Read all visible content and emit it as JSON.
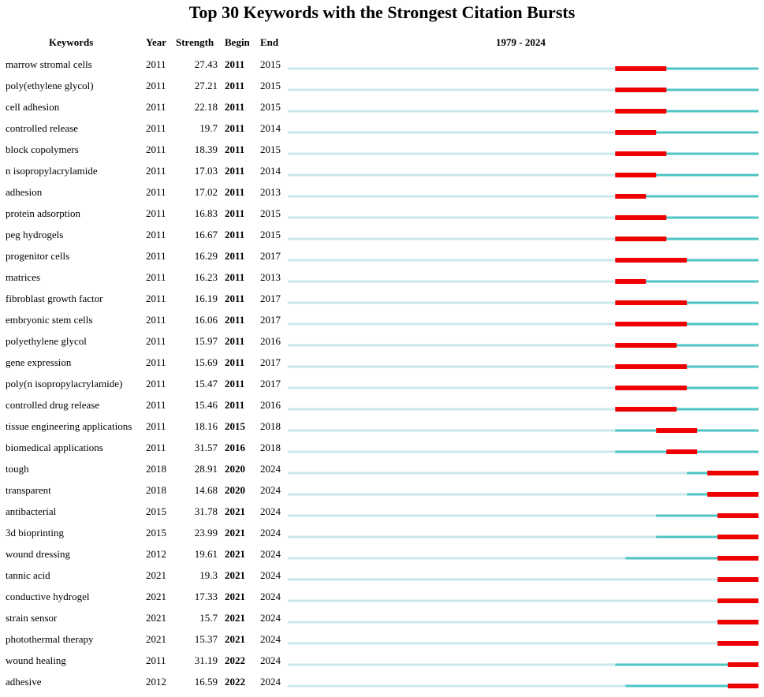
{
  "title": "Top 30 Keywords with the Strongest Citation Bursts",
  "headers": {
    "keywords": "Keywords",
    "year": "Year",
    "strength": "Strength",
    "begin": "Begin",
    "end": "End",
    "range": "1979 - 2024"
  },
  "colors": {
    "inactive": "#c8e8ec",
    "active": "#4ec3c3",
    "burst": "#ee0000"
  },
  "chart_data": {
    "type": "table",
    "title": "Top 30 Keywords with the Strongest Citation Bursts",
    "timeline_start": 1979,
    "timeline_end": 2024,
    "columns": [
      "Keywords",
      "Year",
      "Strength",
      "Begin",
      "End"
    ],
    "rows": [
      {
        "keyword": "marrow stromal cells",
        "year": 2011,
        "strength": "27.43",
        "begin": 2011,
        "end": 2015
      },
      {
        "keyword": "poly(ethylene glycol)",
        "year": 2011,
        "strength": "27.21",
        "begin": 2011,
        "end": 2015
      },
      {
        "keyword": "cell adhesion",
        "year": 2011,
        "strength": "22.18",
        "begin": 2011,
        "end": 2015
      },
      {
        "keyword": "controlled release",
        "year": 2011,
        "strength": "19.7",
        "begin": 2011,
        "end": 2014
      },
      {
        "keyword": "block copolymers",
        "year": 2011,
        "strength": "18.39",
        "begin": 2011,
        "end": 2015
      },
      {
        "keyword": "n isopropylacrylamide",
        "year": 2011,
        "strength": "17.03",
        "begin": 2011,
        "end": 2014
      },
      {
        "keyword": "adhesion",
        "year": 2011,
        "strength": "17.02",
        "begin": 2011,
        "end": 2013
      },
      {
        "keyword": "protein adsorption",
        "year": 2011,
        "strength": "16.83",
        "begin": 2011,
        "end": 2015
      },
      {
        "keyword": "peg hydrogels",
        "year": 2011,
        "strength": "16.67",
        "begin": 2011,
        "end": 2015
      },
      {
        "keyword": "progenitor cells",
        "year": 2011,
        "strength": "16.29",
        "begin": 2011,
        "end": 2017
      },
      {
        "keyword": "matrices",
        "year": 2011,
        "strength": "16.23",
        "begin": 2011,
        "end": 2013
      },
      {
        "keyword": "fibroblast growth factor",
        "year": 2011,
        "strength": "16.19",
        "begin": 2011,
        "end": 2017
      },
      {
        "keyword": "embryonic stem cells",
        "year": 2011,
        "strength": "16.06",
        "begin": 2011,
        "end": 2017
      },
      {
        "keyword": "polyethylene glycol",
        "year": 2011,
        "strength": "15.97",
        "begin": 2011,
        "end": 2016
      },
      {
        "keyword": "gene expression",
        "year": 2011,
        "strength": "15.69",
        "begin": 2011,
        "end": 2017
      },
      {
        "keyword": "poly(n isopropylacrylamide)",
        "year": 2011,
        "strength": "15.47",
        "begin": 2011,
        "end": 2017
      },
      {
        "keyword": "controlled drug release",
        "year": 2011,
        "strength": "15.46",
        "begin": 2011,
        "end": 2016
      },
      {
        "keyword": "tissue engineering applications",
        "year": 2011,
        "strength": "18.16",
        "begin": 2015,
        "end": 2018
      },
      {
        "keyword": "biomedical applications",
        "year": 2011,
        "strength": "31.57",
        "begin": 2016,
        "end": 2018
      },
      {
        "keyword": "tough",
        "year": 2018,
        "strength": "28.91",
        "begin": 2020,
        "end": 2024
      },
      {
        "keyword": "transparent",
        "year": 2018,
        "strength": "14.68",
        "begin": 2020,
        "end": 2024
      },
      {
        "keyword": "antibacterial",
        "year": 2015,
        "strength": "31.78",
        "begin": 2021,
        "end": 2024
      },
      {
        "keyword": "3d bioprinting",
        "year": 2015,
        "strength": "23.99",
        "begin": 2021,
        "end": 2024
      },
      {
        "keyword": "wound dressing",
        "year": 2012,
        "strength": "19.61",
        "begin": 2021,
        "end": 2024
      },
      {
        "keyword": "tannic acid",
        "year": 2021,
        "strength": "19.3",
        "begin": 2021,
        "end": 2024
      },
      {
        "keyword": "conductive hydrogel",
        "year": 2021,
        "strength": "17.33",
        "begin": 2021,
        "end": 2024
      },
      {
        "keyword": "strain sensor",
        "year": 2021,
        "strength": "15.7",
        "begin": 2021,
        "end": 2024
      },
      {
        "keyword": "photothermal therapy",
        "year": 2021,
        "strength": "15.37",
        "begin": 2021,
        "end": 2024
      },
      {
        "keyword": "wound healing",
        "year": 2011,
        "strength": "31.19",
        "begin": 2022,
        "end": 2024
      },
      {
        "keyword": "adhesive",
        "year": 2012,
        "strength": "16.59",
        "begin": 2022,
        "end": 2024
      }
    ]
  }
}
